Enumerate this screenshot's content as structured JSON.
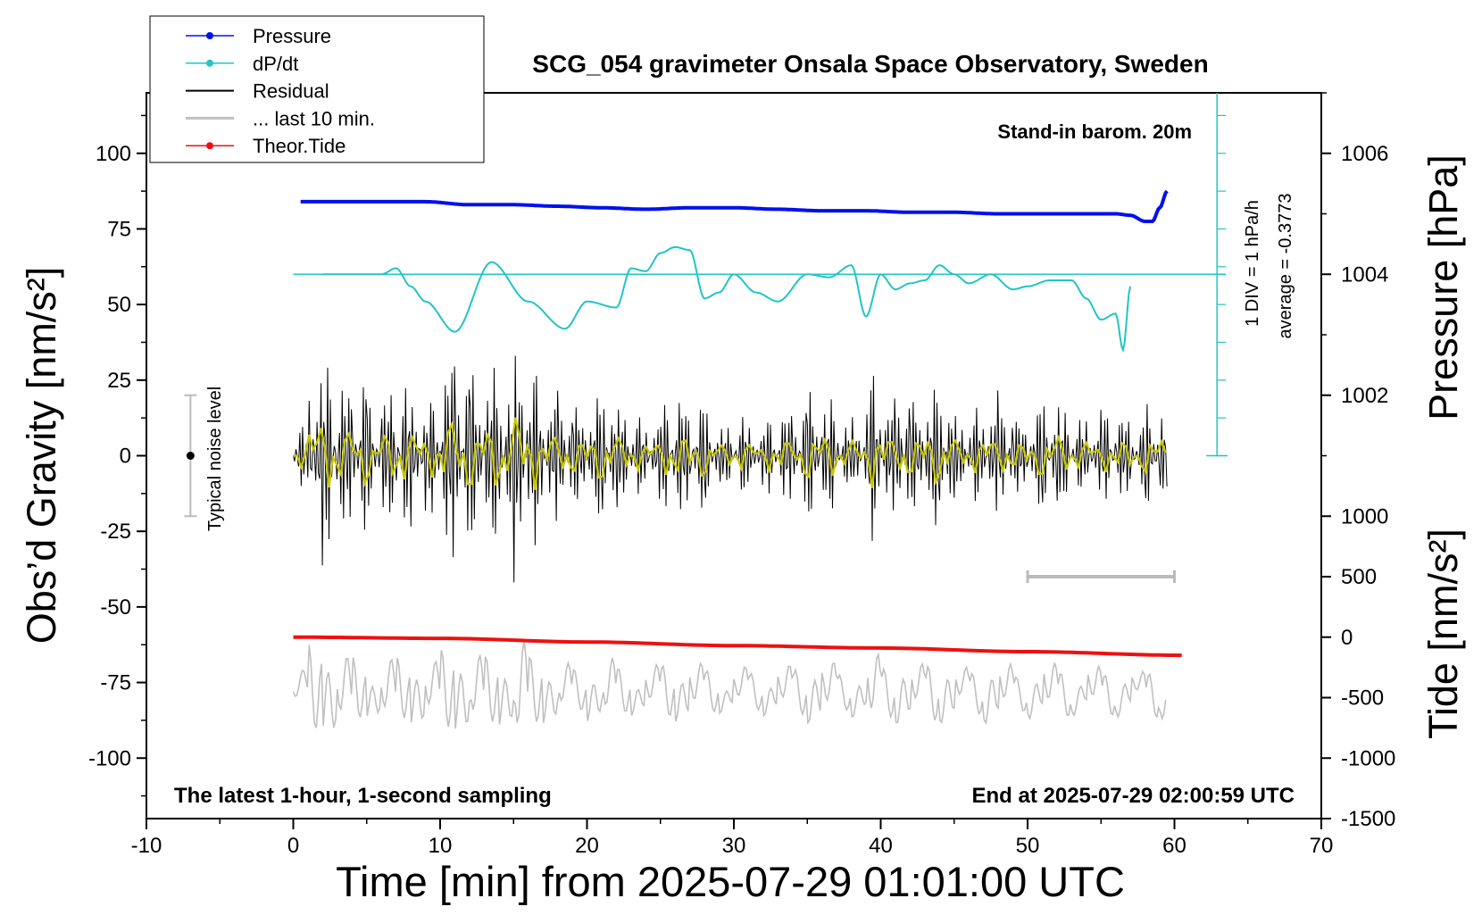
{
  "chart_data": {
    "type": "line",
    "title": "SCG_054 gravimeter Onsala Space Observatory, Sweden",
    "xlabel": "Time [min] from 2025-07-29 01:01:00 UTC",
    "ylabel_left": "Obs’d Gravity [nm/s²]",
    "ylabel_right_top": "Pressure [hPa]",
    "ylabel_right_bottom": "Tide [nm/s²]",
    "xlim": [
      -10,
      70
    ],
    "ylim_left": [
      -120,
      120
    ],
    "x_ticks": [
      "-10",
      "0",
      "10",
      "20",
      "30",
      "40",
      "50",
      "60",
      "70"
    ],
    "y_ticks_left": [
      "100",
      "75",
      "50",
      "25",
      "0",
      "-25",
      "-50",
      "-75",
      "-100"
    ],
    "pressure_ticks": [
      "1006",
      "1004",
      "1002"
    ],
    "tide_ticks": [
      "1000",
      "500",
      "0",
      "-500",
      "-1000",
      "-1500"
    ],
    "annotations": {
      "barometer": "Stand-in barom. 20m",
      "div_label": "1 DIV = 1 hPa/h",
      "average": "average = -0.3773",
      "noise": "Typical noise level",
      "latest": "The latest 1-hour, 1-second sampling",
      "end": "End at 2025-07-29 02:00:59 UTC"
    },
    "legend": {
      "placement": "top-left",
      "entries": [
        "Pressure",
        "dP/dt",
        "Residual",
        "... last 10 min.",
        "Theor.Tide"
      ]
    },
    "colors": {
      "pressure": "#0010ee",
      "dpdt": "#22c4c4",
      "residual": "#000000",
      "residual_smooth": "#c8c800",
      "last10": "#c0c0c0",
      "tide": "#ee1010"
    },
    "series": [
      {
        "name": "Pressure",
        "x": [
          0.5,
          3,
          6,
          9,
          12,
          15,
          18,
          21,
          24,
          27,
          30,
          33,
          36,
          39,
          42,
          45,
          48,
          51,
          54,
          56,
          57,
          58,
          58.5,
          59,
          59.5
        ],
        "y": [
          84,
          84,
          84,
          84,
          83,
          83,
          82.5,
          82,
          81.5,
          82,
          82,
          81.5,
          81,
          81,
          80.5,
          80.5,
          80,
          80,
          80,
          80,
          79.5,
          77.5,
          77.5,
          82,
          87.5
        ]
      },
      {
        "name": "dP/dt",
        "x": [
          2,
          4,
          6,
          7,
          8,
          9,
          11,
          13.5,
          16,
          18.5,
          20,
          22,
          23,
          24,
          25,
          26,
          27,
          28,
          29,
          30,
          31.5,
          33,
          35,
          36.5,
          38,
          39,
          40,
          41,
          42,
          43,
          44,
          45,
          46,
          47.5,
          49,
          50,
          51.5,
          53,
          54,
          55,
          56,
          56.5,
          57
        ],
        "y": [
          60,
          60,
          60,
          62,
          56,
          51,
          41,
          64,
          51,
          42,
          51,
          49,
          62,
          61,
          67,
          69,
          68,
          52,
          54,
          60,
          54,
          51,
          60,
          59,
          63,
          46,
          60,
          55,
          57,
          58,
          63,
          60,
          57,
          60,
          55,
          56,
          58,
          58,
          52,
          45,
          47,
          35,
          56
        ]
      },
      {
        "name": "Residual",
        "x": [
          0,
          1,
          2,
          3,
          4,
          5,
          6,
          7,
          8,
          9,
          10,
          11,
          12,
          13,
          14,
          15,
          16,
          17,
          18,
          19,
          20,
          21,
          22,
          23,
          24,
          25,
          26,
          27,
          28,
          29,
          30,
          31,
          32,
          33,
          34,
          35,
          36,
          37,
          38,
          39,
          40,
          41,
          42,
          43,
          44,
          45,
          46,
          47,
          48,
          49,
          50,
          51,
          52,
          53,
          54,
          55,
          56,
          57,
          58,
          59,
          60
        ],
        "y": [
          -12,
          45,
          -38,
          28,
          -30,
          20,
          -25,
          30,
          -28,
          22,
          -40,
          35,
          -30,
          33,
          -28,
          47,
          -33,
          25,
          -20,
          18,
          -22,
          26,
          -20,
          15,
          -18,
          24,
          -22,
          20,
          -18,
          12,
          -16,
          15,
          -15,
          18,
          -20,
          24,
          -22,
          14,
          -17,
          32,
          -22,
          25,
          -20,
          26,
          -24,
          16,
          -18,
          24,
          -20,
          14,
          -18,
          22,
          -20,
          14,
          -18,
          18,
          -16,
          12,
          -20,
          18,
          10
        ]
      },
      {
        "name": "Theor.Tide",
        "x": [
          0,
          10,
          20,
          30,
          40,
          50,
          60.5
        ],
        "y": [
          0,
          -10,
          -40,
          -70,
          -90,
          -120,
          -150
        ]
      }
    ],
    "last_10_min_range": [
      50,
      60
    ]
  }
}
